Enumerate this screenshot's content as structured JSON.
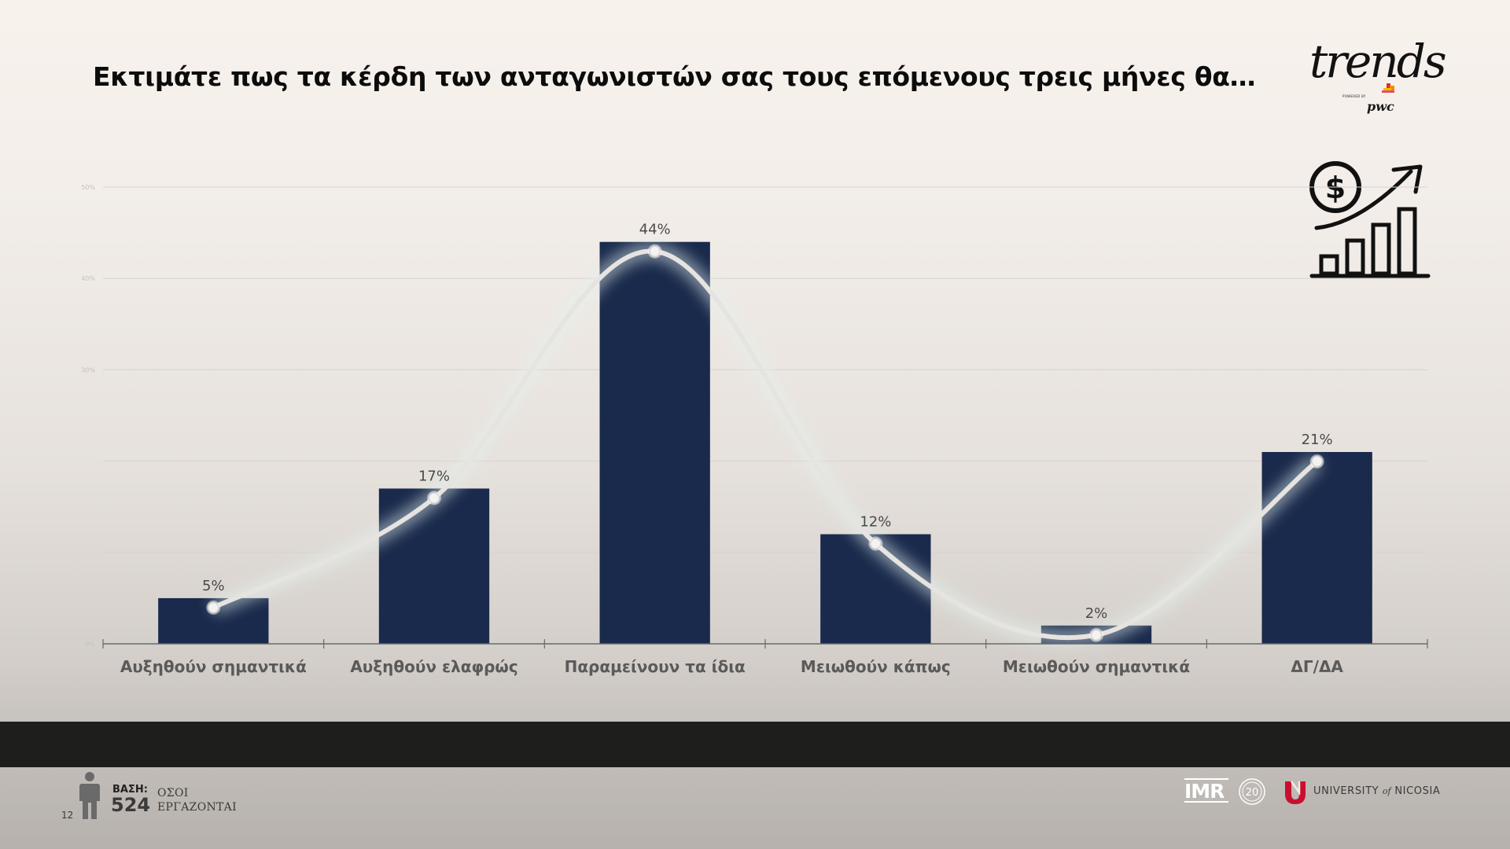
{
  "title": "Εκτιμάτε πως τα κέρδη των ανταγωνιστών σας τους επόμενους τρεις μήνες θα…",
  "brand": {
    "name": "trends",
    "powered": "POWERED BY",
    "partner": "pwc"
  },
  "colors": {
    "bar": "#1a2a4c",
    "curve": "#e6e3e0",
    "axis": "#6a6a6a",
    "band": "#1e1e1c"
  },
  "chart_data": {
    "type": "bar",
    "categories": [
      "Αυξηθούν σημαντικά",
      "Αυξηθούν ελαφρώς",
      "Παραμείνουν τα ίδια",
      "Μειωθούν κάπως",
      "Μειωθούν σημαντικά",
      "ΔΓ/ΔΑ"
    ],
    "values": [
      5,
      17,
      44,
      12,
      2,
      21
    ],
    "data_labels": [
      "5%",
      "17%",
      "44%",
      "12%",
      "2%",
      "21%"
    ],
    "ylim": [
      0,
      50
    ],
    "yticks": [
      0,
      10,
      20,
      30,
      40,
      50
    ],
    "ytick_labels": [
      "0%",
      "",
      "",
      "30%",
      "40%",
      "50%"
    ],
    "grid": true,
    "overlay": "smooth line through bar tops",
    "title": "",
    "xlabel": "",
    "ylabel": ""
  },
  "footer": {
    "page": "12",
    "base_label": "ΒΑΣΗ:",
    "base_count": "524",
    "base_desc_line1": "ΟΣΟΙ",
    "base_desc_line2": "ΕΡΓΑΖΟΝΤΑΙ",
    "university_prefix": "UNIVERSITY",
    "university_of": "of",
    "university_name": "NICOSIA",
    "imr_text": "IMR"
  }
}
